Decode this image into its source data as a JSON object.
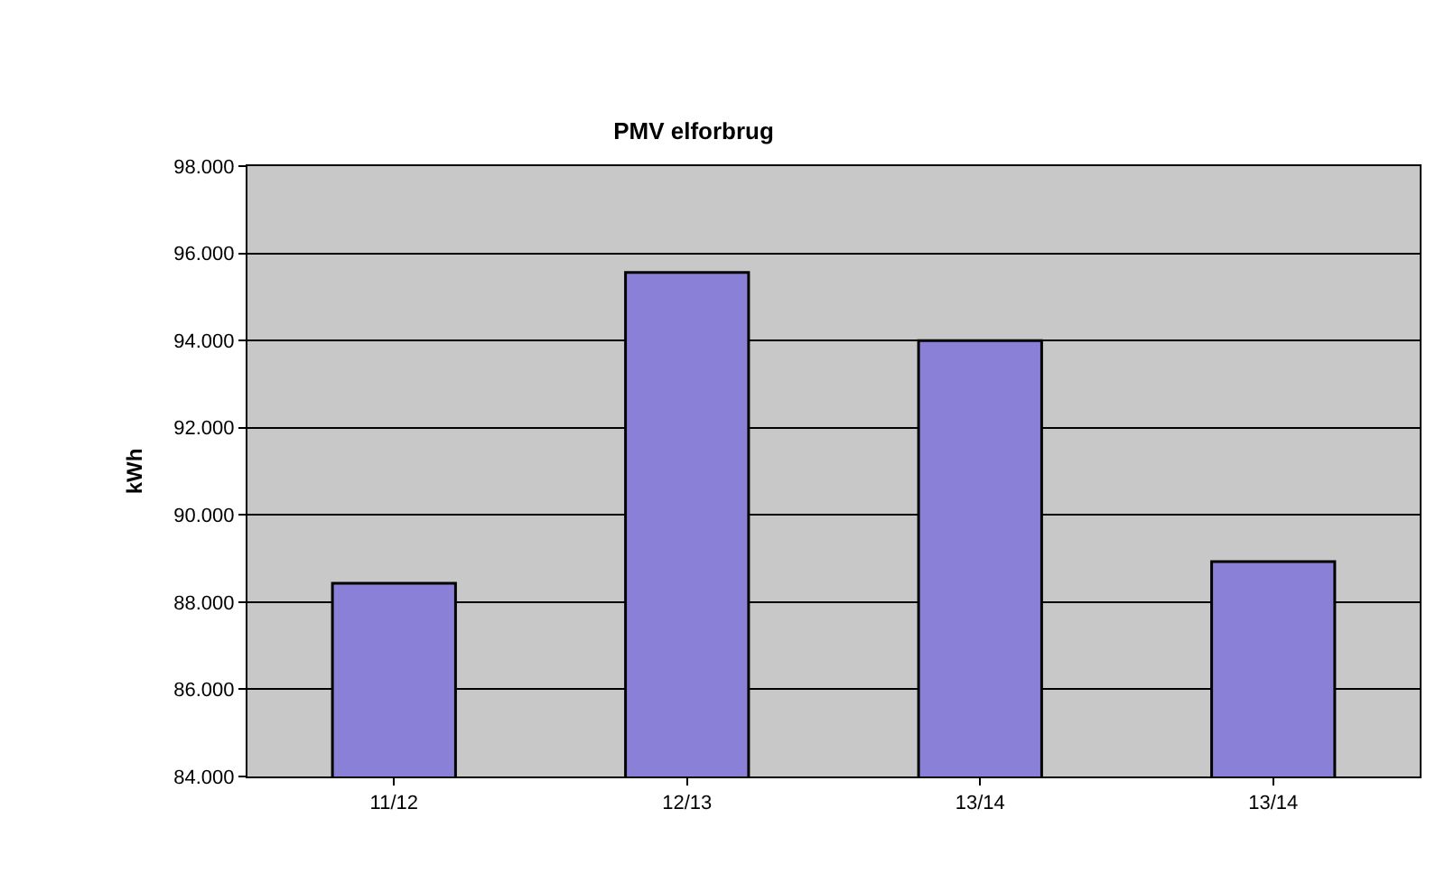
{
  "chart_data": {
    "type": "bar",
    "title": "PMV elforbrug",
    "ylabel": "kWh",
    "categories": [
      "11/12",
      "12/13",
      "13/14",
      "13/14"
    ],
    "values": [
      88430,
      95560,
      94000,
      88930
    ],
    "color": "#8a80d8",
    "ylim": [
      84000,
      98000
    ],
    "yticks": [
      {
        "value": 84000,
        "label": "84.000"
      },
      {
        "value": 86000,
        "label": "86.000"
      },
      {
        "value": 88000,
        "label": "88.000"
      },
      {
        "value": 90000,
        "label": "90.000"
      },
      {
        "value": 92000,
        "label": "92.000"
      },
      {
        "value": 94000,
        "label": "94.000"
      },
      {
        "value": 96000,
        "label": "96.000"
      },
      {
        "value": 98000,
        "label": "98.000"
      }
    ],
    "grid": "y"
  }
}
